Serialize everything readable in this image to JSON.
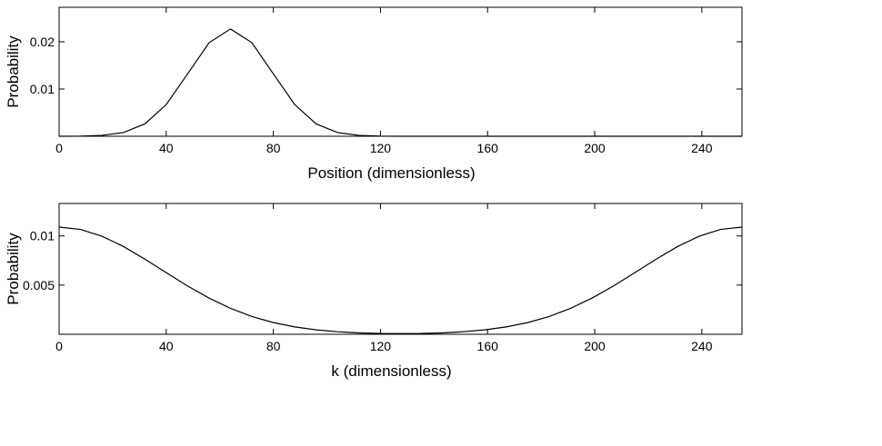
{
  "chart_data": [
    {
      "type": "line",
      "x_label": "Position (dimensionless)",
      "y_label": "Probability",
      "x": [
        0,
        8,
        16,
        24,
        32,
        40,
        48,
        56,
        64,
        72,
        80,
        88,
        96,
        104,
        112,
        120,
        128,
        136,
        144,
        152,
        160,
        168,
        176,
        184,
        192,
        200,
        208,
        216,
        224,
        232,
        240,
        248,
        255
      ],
      "series": [
        {
          "color": "#000000",
          "values": [
            4e-06,
            3e-05,
            0.00018,
            0.00078,
            0.0026,
            0.0067,
            0.0132,
            0.0198,
            0.0227,
            0.0198,
            0.0132,
            0.0067,
            0.0026,
            0.00078,
            0.00018,
            3e-05,
            4e-06,
            0,
            0,
            0,
            0,
            0,
            0,
            0,
            0,
            0,
            0,
            0,
            0,
            0,
            0,
            0,
            0
          ]
        }
      ],
      "xlim": [
        0,
        255
      ],
      "ylim": [
        0,
        0.0273
      ],
      "xticks": [
        0,
        40,
        80,
        120,
        160,
        200,
        240
      ],
      "yticks": [
        0.01,
        0.02
      ]
    },
    {
      "type": "line",
      "x_label": "k (dimensionless)",
      "y_label": "Probability",
      "x": [
        0,
        8,
        16,
        24,
        32,
        40,
        48,
        56,
        64,
        72,
        80,
        88,
        96,
        104,
        112,
        120,
        128,
        135,
        143,
        151,
        159,
        167,
        175,
        183,
        191,
        199,
        207,
        215,
        223,
        231,
        239,
        247,
        255
      ],
      "series": [
        {
          "color": "#000000",
          "values": [
            0.0109,
            0.01066,
            0.00997,
            0.00893,
            0.00764,
            0.00627,
            0.00491,
            0.00368,
            0.00264,
            0.00181,
            0.00119,
            0.00075,
            0.00045,
            0.00026,
            0.00014,
            8e-05,
            7e-05,
            8e-05,
            0.00014,
            0.00026,
            0.00045,
            0.00075,
            0.00119,
            0.00181,
            0.00264,
            0.00368,
            0.00491,
            0.00627,
            0.00764,
            0.00893,
            0.00997,
            0.01066,
            0.0109
          ]
        }
      ],
      "xlim": [
        0,
        255
      ],
      "ylim": [
        0,
        0.0133
      ],
      "xticks": [
        0,
        40,
        80,
        120,
        160,
        200,
        240
      ],
      "yticks": [
        0.005,
        0.01
      ]
    }
  ]
}
